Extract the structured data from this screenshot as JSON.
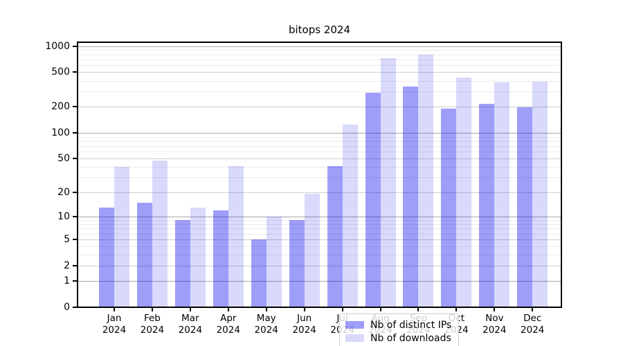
{
  "title": "bitops 2024",
  "colors": {
    "distinct_ips": "rgba(0,0,238,0.38)",
    "downloads": "rgba(0,0,238,0.15)",
    "grid_pow10": "#a8a8a8",
    "grid_major": "#cfcfcf",
    "grid_minor": "#ebebeb",
    "axis": "#000000",
    "legend_bg": "rgba(255,255,255,0.8)",
    "legend_border": "#cccccc",
    "text": "#000000"
  },
  "legend": {
    "items": [
      {
        "label": "Nb of distinct IPs",
        "series_key": "distinct_ips"
      },
      {
        "label": "Nb of downloads",
        "series_key": "downloads"
      }
    ]
  },
  "y_axis": {
    "tick_labels": [
      "0",
      "1",
      "2",
      "5",
      "10",
      "20",
      "50",
      "100",
      "200",
      "500",
      "1000"
    ]
  },
  "x_axis": {
    "months": [
      "Jan",
      "Feb",
      "Mar",
      "Apr",
      "May",
      "Jun",
      "Jul",
      "Aug",
      "Sep",
      "Oct",
      "Nov",
      "Dec"
    ],
    "year": "2024"
  },
  "chart_data": {
    "type": "bar",
    "title": "bitops 2024",
    "categories": [
      "Jan 2024",
      "Feb 2024",
      "Mar 2024",
      "Apr 2024",
      "May 2024",
      "Jun 2024",
      "Jul 2024",
      "Aug 2024",
      "Sep 2024",
      "Oct 2024",
      "Nov 2024",
      "Dec 2024"
    ],
    "series": [
      {
        "name": "Nb of distinct IPs",
        "values": [
          13,
          15,
          9,
          12,
          5,
          9,
          41,
          290,
          340,
          190,
          215,
          198
        ]
      },
      {
        "name": "Nb of downloads",
        "values": [
          40,
          47,
          13,
          41,
          10,
          19,
          125,
          730,
          800,
          435,
          385,
          390
        ]
      }
    ],
    "yscale": "log1p",
    "ylim": [
      0,
      1100
    ],
    "y_ticks": [
      0,
      1,
      2,
      5,
      10,
      20,
      50,
      100,
      200,
      500,
      1000
    ],
    "grid": "both",
    "legend_position": "lower center"
  }
}
